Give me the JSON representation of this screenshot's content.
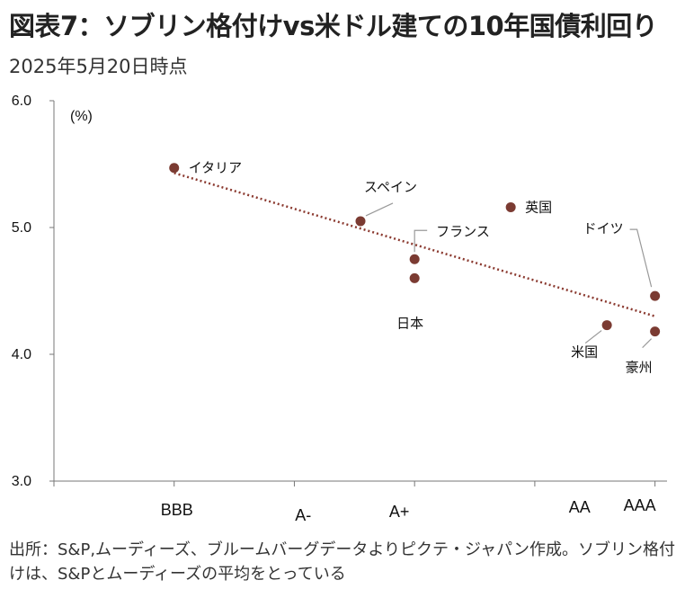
{
  "title": "図表7：ソブリン格付けvs米ドル建ての10年国債利回り",
  "subtitle": "2025年5月20日時点",
  "source": "出所：S&P,ムーディーズ、ブルームバーグデータよりピクテ・ジャパン作成。ソブリン格付けは、S&Pとムーディーズの平均をとっている",
  "colors": {
    "points": "#7b3b32",
    "trend": "#8b3a30",
    "axis": "#777777"
  },
  "chart_data": {
    "type": "scatter",
    "ylabel": "(%)",
    "ylim": [
      3.0,
      6.0
    ],
    "yticks": [
      "3.0",
      "4.0",
      "5.0",
      "6.0"
    ],
    "categories": [
      "BBB",
      "A-",
      "A+",
      "AA",
      "AAA"
    ],
    "points": [
      {
        "name": "イタリア",
        "x": 1.0,
        "y": 5.47
      },
      {
        "name": "スペイン",
        "x": 2.55,
        "y": 5.05
      },
      {
        "name": "英国",
        "x": 3.8,
        "y": 5.16
      },
      {
        "name": "フランス",
        "x": 3.0,
        "y": 4.75
      },
      {
        "name": "日本",
        "x": 3.0,
        "y": 4.6
      },
      {
        "name": "米国",
        "x": 4.6,
        "y": 4.23
      },
      {
        "name": "ドイツ",
        "x": 5.0,
        "y": 4.46
      },
      {
        "name": "豪州",
        "x": 5.0,
        "y": 4.18
      }
    ],
    "trendline": {
      "x_start": 1.0,
      "y_start": 5.43,
      "x_end": 5.0,
      "y_end": 4.3
    }
  }
}
